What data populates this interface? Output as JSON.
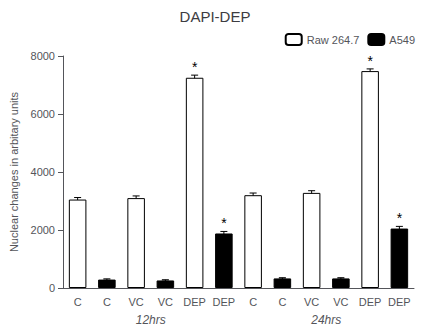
{
  "chart_data": {
    "type": "bar",
    "title": "DAPI-DEP",
    "ylabel": "Nuclear changes in arbitary units",
    "categories": [
      "C",
      "C",
      "VC",
      "VC",
      "DEP",
      "DEP",
      "C",
      "C",
      "VC",
      "VC",
      "DEP",
      "DEP"
    ],
    "series": [
      {
        "name": "Raw 264.7",
        "color": "white",
        "values": [
          3050,
          null,
          3100,
          null,
          7250,
          null,
          3200,
          null,
          3280,
          null,
          7480,
          null
        ],
        "errors": [
          70,
          null,
          75,
          null,
          90,
          null,
          75,
          null,
          75,
          null,
          75,
          null
        ]
      },
      {
        "name": "A549",
        "color": "black",
        "values": [
          null,
          290,
          null,
          260,
          null,
          1880,
          null,
          330,
          null,
          330,
          null,
          2050
        ],
        "errors": [
          null,
          25,
          null,
          25,
          null,
          70,
          null,
          25,
          null,
          25,
          null,
          75
        ]
      }
    ],
    "annotations": [
      {
        "text": "*",
        "bar": 4
      },
      {
        "text": "*",
        "bar": 5
      },
      {
        "text": "*",
        "bar": 10
      },
      {
        "text": "*",
        "bar": 11
      }
    ],
    "group_labels": [
      "12hrs",
      "24hrs"
    ],
    "ylim": [
      0,
      8000
    ],
    "yticks": [
      0,
      2000,
      4000,
      6000,
      8000
    ],
    "grid": false,
    "legend": "upper right"
  }
}
